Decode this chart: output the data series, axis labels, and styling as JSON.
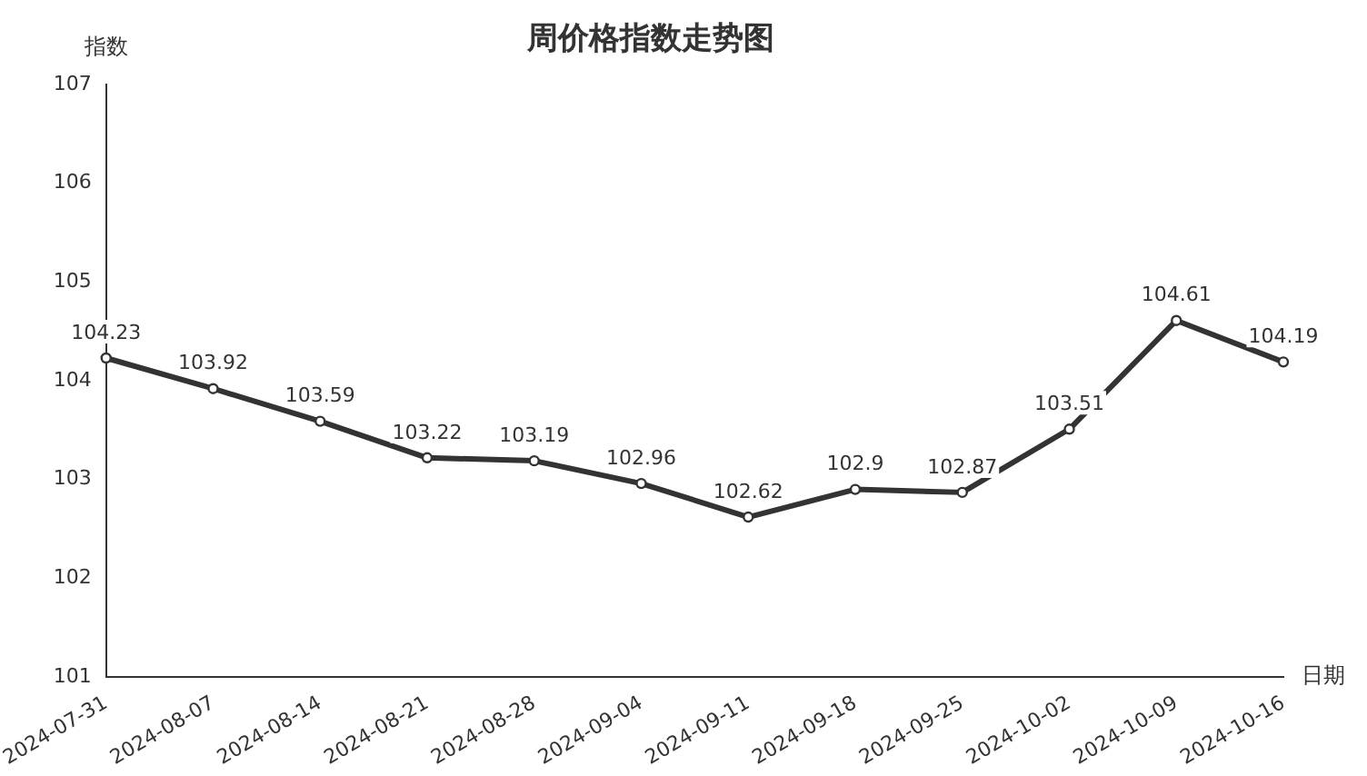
{
  "chart_data": {
    "type": "line",
    "title": "周价格指数走势图",
    "xlabel": "日期",
    "ylabel": "指数",
    "categories": [
      "2024-07-31",
      "2024-08-07",
      "2024-08-14",
      "2024-08-21",
      "2024-08-28",
      "2024-09-04",
      "2024-09-11",
      "2024-09-18",
      "2024-09-25",
      "2024-10-02",
      "2024-10-09",
      "2024-10-16"
    ],
    "series": [
      {
        "color": "#333333",
        "values": [
          104.23,
          103.92,
          103.59,
          103.22,
          103.19,
          102.96,
          102.62,
          102.9,
          102.87,
          103.51,
          104.61,
          104.19
        ]
      }
    ],
    "ylim": [
      101,
      107
    ],
    "yticks": [
      101,
      102,
      103,
      104,
      105,
      106,
      107
    ],
    "grid": false,
    "legend": false,
    "marker": "circle",
    "line_style": "solid",
    "data_labels": true
  }
}
